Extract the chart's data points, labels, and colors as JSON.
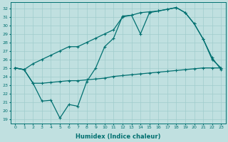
{
  "xlabel": "Humidex (Indice chaleur)",
  "bg_color": "#c0e0e0",
  "grid_color": "#a0cccc",
  "line_color": "#007070",
  "xlim": [
    -0.5,
    23.5
  ],
  "ylim": [
    18.5,
    32.7
  ],
  "yticks": [
    19,
    20,
    21,
    22,
    23,
    24,
    25,
    26,
    27,
    28,
    29,
    30,
    31,
    32
  ],
  "xticks": [
    0,
    1,
    2,
    3,
    4,
    5,
    6,
    7,
    8,
    9,
    10,
    11,
    12,
    13,
    14,
    15,
    16,
    17,
    18,
    19,
    20,
    21,
    22,
    23
  ],
  "line_top_x": [
    0,
    1,
    2,
    3,
    4,
    5,
    6,
    7,
    8,
    9,
    10,
    11,
    12,
    13,
    14,
    15,
    16,
    17,
    18,
    19,
    20,
    21,
    22,
    23
  ],
  "line_top_y": [
    25.0,
    24.8,
    25.5,
    26.0,
    26.5,
    27.0,
    27.5,
    27.5,
    28.0,
    28.5,
    29.0,
    29.5,
    31.0,
    31.2,
    31.5,
    31.6,
    31.7,
    31.9,
    32.1,
    31.5,
    30.2,
    28.4,
    26.2,
    24.8
  ],
  "line_mid_x": [
    0,
    1,
    2,
    3,
    4,
    5,
    6,
    7,
    8,
    9,
    10,
    11,
    12,
    13,
    14,
    15,
    16,
    17,
    18,
    19,
    20,
    21,
    22,
    23
  ],
  "line_mid_y": [
    25.0,
    24.8,
    23.2,
    23.2,
    23.3,
    23.4,
    23.5,
    23.5,
    23.6,
    23.7,
    23.8,
    24.0,
    24.1,
    24.2,
    24.3,
    24.4,
    24.5,
    24.6,
    24.7,
    24.8,
    24.9,
    25.0,
    25.0,
    25.0
  ],
  "line_bot_x": [
    0,
    1,
    2,
    3,
    4,
    5,
    6,
    7,
    8,
    9,
    10,
    11,
    12,
    13,
    14,
    15,
    16,
    17,
    18,
    19,
    20,
    21,
    22,
    23
  ],
  "line_bot_y": [
    25.0,
    24.8,
    23.2,
    21.1,
    21.2,
    19.1,
    20.7,
    20.5,
    23.4,
    25.0,
    27.5,
    28.5,
    31.1,
    31.2,
    29.0,
    31.5,
    31.7,
    31.9,
    32.1,
    31.5,
    30.2,
    28.4,
    26.0,
    25.0
  ]
}
